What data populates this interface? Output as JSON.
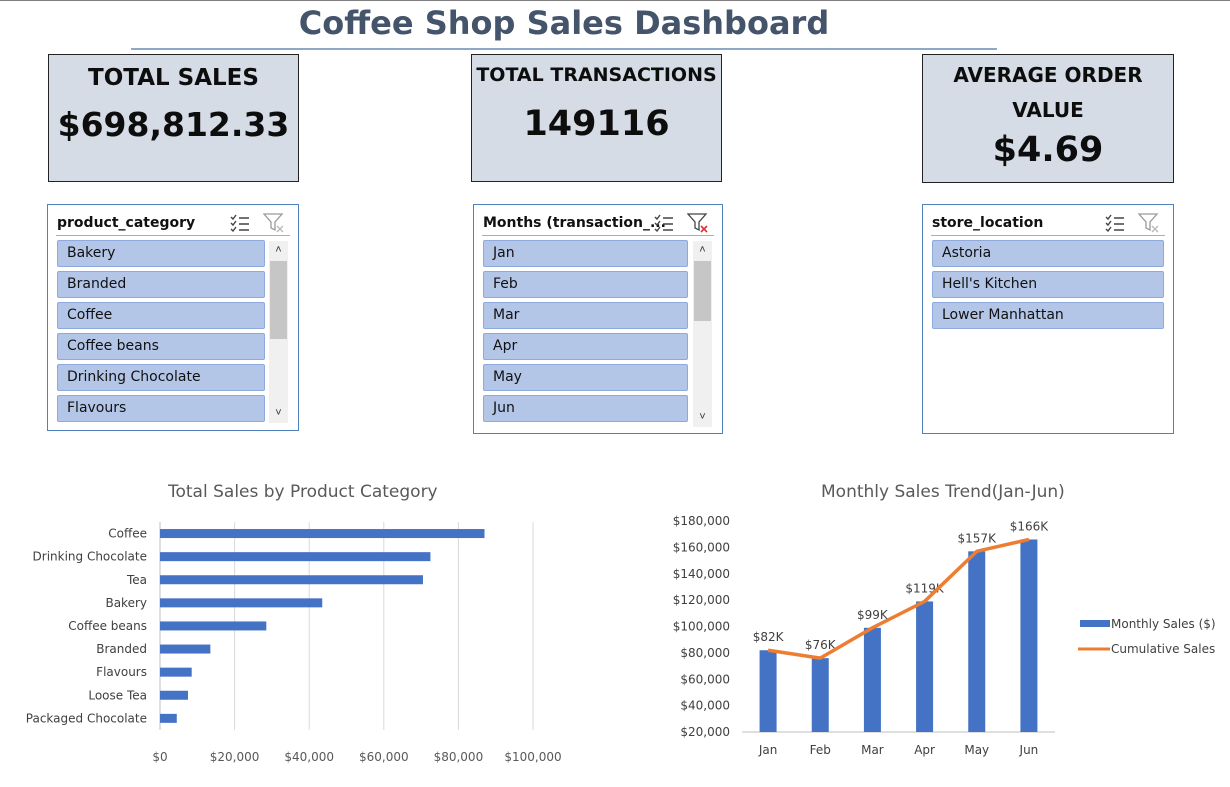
{
  "dashboard": {
    "title": "Coffee Shop Sales Dashboard"
  },
  "kpis": {
    "total_sales": {
      "label": "TOTAL SALES",
      "value": "$698,812.33"
    },
    "total_transactions": {
      "label": "TOTAL TRANSACTIONS",
      "value": "149116"
    },
    "average_order_value": {
      "label_line1": "AVERAGE ORDER",
      "label_line2": "VALUE",
      "value": "$4.69"
    }
  },
  "slicers": {
    "product_category": {
      "header": "product_category",
      "items": [
        "Bakery",
        "Branded",
        "Coffee",
        "Coffee beans",
        "Drinking Chocolate",
        "Flavours"
      ]
    },
    "months": {
      "header": "Months (transaction_...",
      "items": [
        "Jan",
        "Feb",
        "Mar",
        "Apr",
        "May",
        "Jun"
      ]
    },
    "store_location": {
      "header": "store_location",
      "items": [
        "Astoria",
        "Hell's Kitchen",
        "Lower Manhattan"
      ]
    }
  },
  "icons": {
    "multi_select": "multi-select-icon",
    "clear_filter": "clear-filter-icon",
    "scroll_up": "chevron-up-icon",
    "scroll_down": "chevron-down-icon"
  },
  "colors": {
    "kpi_bg": "#d5dce6",
    "slicer_item": "#b4c6e7",
    "bar": "#4472c4",
    "line": "#ed7d31",
    "title": "#44546a"
  },
  "chart_data": [
    {
      "type": "bar",
      "orientation": "horizontal",
      "title": "Total Sales by Product Category",
      "categories": [
        "Coffee",
        "Drinking Chocolate",
        "Tea",
        "Bakery",
        "Coffee beans",
        "Branded",
        "Flavours",
        "Loose Tea",
        "Packaged Chocolate"
      ],
      "values": [
        87000,
        72500,
        70500,
        43500,
        28500,
        13500,
        8500,
        7500,
        4500
      ],
      "xlim": [
        0,
        100000
      ],
      "xticks": [
        "$0",
        "$20,000",
        "$40,000",
        "$60,000",
        "$80,000",
        "$100,000"
      ],
      "grid": true
    },
    {
      "type": "bar+line",
      "title": "Monthly Sales Trend(Jan-Jun)",
      "categories": [
        "Jan",
        "Feb",
        "Mar",
        "Apr",
        "May",
        "Jun"
      ],
      "series": [
        {
          "name": "Monthly Sales ($)",
          "type": "bar",
          "values": [
            82000,
            76000,
            99000,
            119000,
            157000,
            166000
          ],
          "labels": [
            "$82K",
            "$76K",
            "$99K",
            "$119K",
            "$157K",
            "$166K"
          ]
        },
        {
          "name": "Cumulative Sales",
          "type": "line",
          "values": [
            82000,
            76000,
            99000,
            119000,
            157000,
            166000
          ]
        }
      ],
      "ylim": [
        20000,
        180000
      ],
      "yticks": [
        "$20,000",
        "$40,000",
        "$60,000",
        "$80,000",
        "$100,000",
        "$120,000",
        "$140,000",
        "$160,000",
        "$180,000"
      ],
      "legend": "right"
    }
  ]
}
